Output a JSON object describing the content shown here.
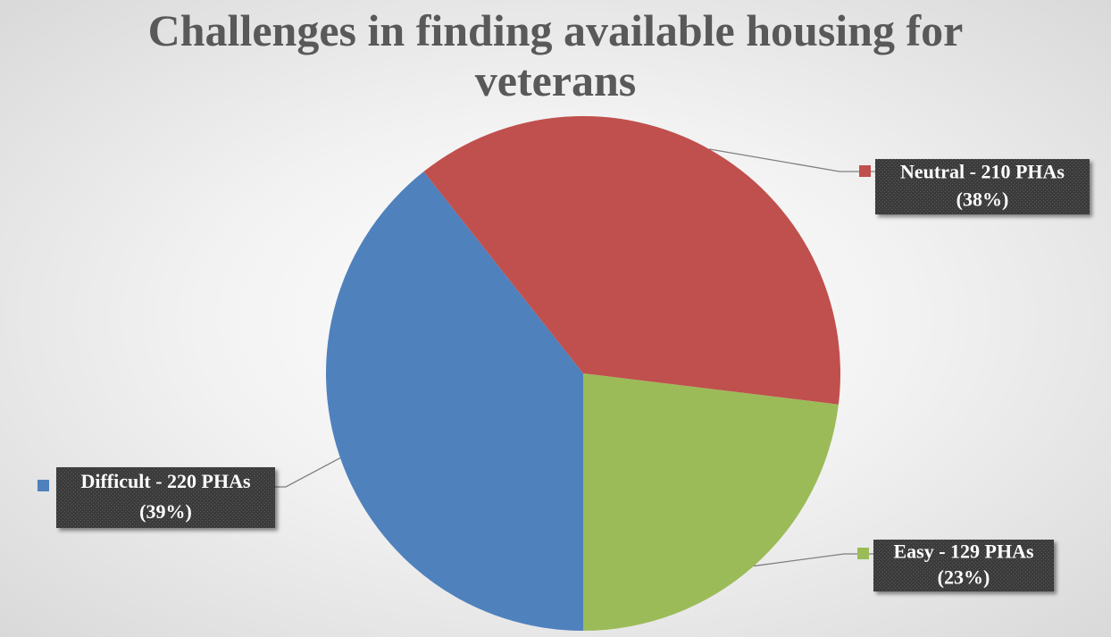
{
  "chart_data": {
    "type": "pie",
    "title": "Challenges in finding available housing for veterans",
    "values": [
      220,
      210,
      129
    ],
    "value_labels": [
      [
        "Difficult - 220 PHAs",
        "(39%)"
      ],
      [
        "Neutral - 210 PHAs",
        "(38%)"
      ],
      [
        "Easy - 129 PHAs",
        "(23%)"
      ]
    ],
    "colors": [
      "#4f81bd",
      "#c0504d",
      "#9bbb59"
    ],
    "start_angle": 180
  }
}
